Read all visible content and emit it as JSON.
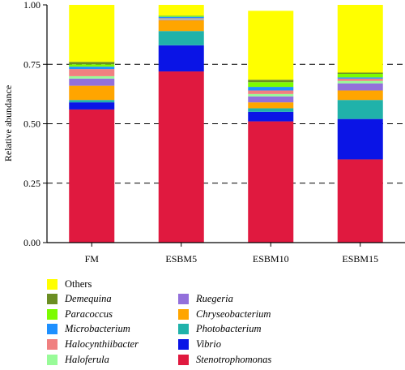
{
  "chart_data": {
    "type": "bar",
    "stacked": true,
    "title": "",
    "xlabel": "",
    "ylabel": "Relative abundance",
    "ylim": [
      0,
      1
    ],
    "yticks": [
      "0.00",
      "0.25",
      "0.50",
      "0.75",
      "1.00"
    ],
    "grid": "dashed horizontal at 0.25, 0.50, 0.75",
    "legend_position": "bottom",
    "categories": [
      "FM",
      "ESBM5",
      "ESBM10",
      "ESBM15"
    ],
    "series": [
      {
        "name": "Stenotrophomonas",
        "color": "#e0193f",
        "values": [
          0.56,
          0.72,
          0.51,
          0.35
        ]
      },
      {
        "name": "Vibrio",
        "color": "#0a14e6",
        "values": [
          0.03,
          0.11,
          0.04,
          0.17
        ]
      },
      {
        "name": "Photobacterium",
        "color": "#20b2aa",
        "values": [
          0.01,
          0.06,
          0.015,
          0.08
        ]
      },
      {
        "name": "Chryseobacterium",
        "color": "#ffa500",
        "values": [
          0.06,
          0.045,
          0.025,
          0.04
        ]
      },
      {
        "name": "Ruegeria",
        "color": "#9370db",
        "values": [
          0.03,
          0.003,
          0.025,
          0.03
        ]
      },
      {
        "name": "Haloferula",
        "color": "#98fb98",
        "values": [
          0.01,
          0.003,
          0.01,
          0.01
        ]
      },
      {
        "name": "Halocynthiibacter",
        "color": "#f08080",
        "values": [
          0.03,
          0.003,
          0.015,
          0.01
        ]
      },
      {
        "name": "Microbacterium",
        "color": "#1e90ff",
        "values": [
          0.01,
          0.006,
          0.015,
          0.005
        ]
      },
      {
        "name": "Paracoccus",
        "color": "#7cfc00",
        "values": [
          0.01,
          0.004,
          0.02,
          0.015
        ]
      },
      {
        "name": "Demequina",
        "color": "#6b8e23",
        "values": [
          0.01,
          0.001,
          0.01,
          0.005
        ]
      },
      {
        "name": "Others",
        "color": "#ffff00",
        "values": [
          0.25,
          0.05,
          0.29,
          0.285
        ]
      }
    ]
  },
  "legend": {
    "items": [
      {
        "label": "Others",
        "color": "#ffff00",
        "italic": false,
        "col": 0,
        "row": 0
      },
      {
        "label": "Demequina",
        "color": "#6b8e23",
        "italic": true,
        "col": 0,
        "row": 1
      },
      {
        "label": "Paracoccus",
        "color": "#7cfc00",
        "italic": true,
        "col": 0,
        "row": 2
      },
      {
        "label": "Microbacterium",
        "color": "#1e90ff",
        "italic": true,
        "col": 0,
        "row": 3
      },
      {
        "label": "Halocynthiibacter",
        "color": "#f08080",
        "italic": true,
        "col": 0,
        "row": 4
      },
      {
        "label": "Haloferula",
        "color": "#98fb98",
        "italic": true,
        "col": 0,
        "row": 5
      },
      {
        "label": "Ruegeria",
        "color": "#9370db",
        "italic": true,
        "col": 1,
        "row": 1
      },
      {
        "label": "Chryseobacterium",
        "color": "#ffa500",
        "italic": true,
        "col": 1,
        "row": 2
      },
      {
        "label": "Photobacterium",
        "color": "#20b2aa",
        "italic": true,
        "col": 1,
        "row": 3
      },
      {
        "label": "Vibrio",
        "color": "#0a14e6",
        "italic": true,
        "col": 1,
        "row": 4
      },
      {
        "label": "Stenotrophomonas",
        "color": "#e0193f",
        "italic": true,
        "col": 1,
        "row": 5
      }
    ]
  }
}
